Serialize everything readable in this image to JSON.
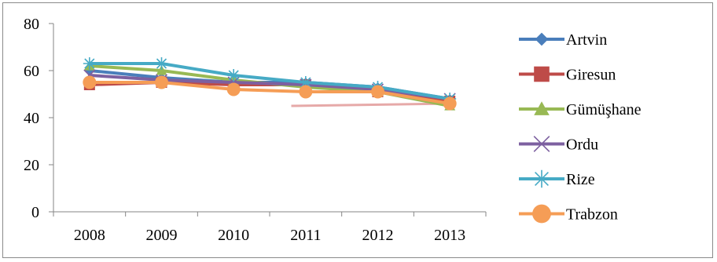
{
  "chart_data": {
    "type": "line",
    "title": "",
    "xlabel": "",
    "ylabel": "",
    "categories": [
      "2008",
      "2009",
      "2010",
      "2011",
      "2012",
      "2013"
    ],
    "ylim": [
      0,
      80
    ],
    "yticks": [
      0,
      20,
      40,
      60,
      80
    ],
    "grid": false,
    "legend_position": "right",
    "series": [
      {
        "name": "Artvin",
        "values": [
          60,
          57,
          55,
          55,
          53,
          48
        ],
        "color": "#4a7ebb",
        "marker": "diamond"
      },
      {
        "name": "Giresun",
        "values": [
          54,
          55,
          54,
          54,
          51,
          47
        ],
        "color": "#be4b48",
        "marker": "square"
      },
      {
        "name": "Gümüşhane",
        "values": [
          62,
          60,
          56,
          53,
          51,
          45
        ],
        "color": "#98b954",
        "marker": "triangle"
      },
      {
        "name": "Ordu",
        "values": [
          58,
          56,
          55,
          54,
          52,
          48
        ],
        "color": "#7d60a0",
        "marker": "x"
      },
      {
        "name": "Rize",
        "values": [
          63,
          63,
          58,
          55,
          53,
          48
        ],
        "color": "#46aac5",
        "marker": "star"
      },
      {
        "name": "Trabzon",
        "values": [
          55,
          55,
          52,
          51,
          51,
          46
        ],
        "color": "#f59d56",
        "marker": "circle"
      }
    ],
    "annotation_lines": [
      {
        "x_from": "2011",
        "x_to": "2013",
        "y_from": 45,
        "y_to": 46,
        "color": "#e6a9a8"
      }
    ]
  }
}
